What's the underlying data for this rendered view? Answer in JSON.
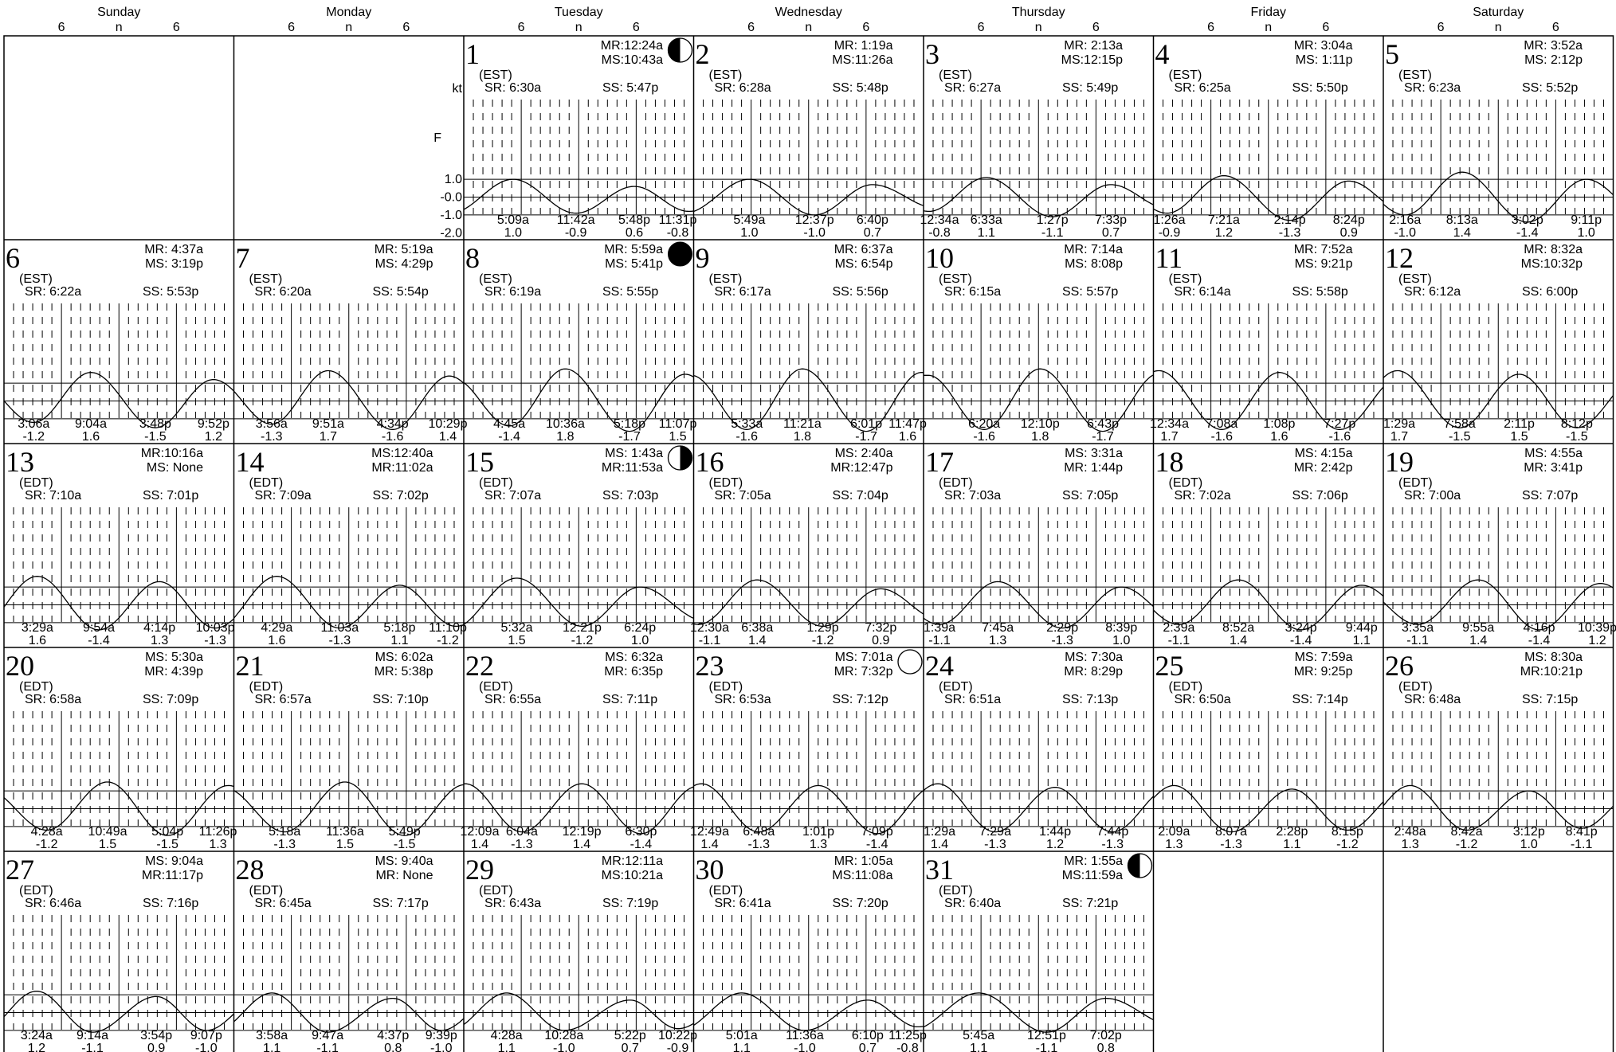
{
  "weekdays": [
    "Sunday",
    "Monday",
    "Tuesday",
    "Wednesday",
    "Thursday",
    "Friday",
    "Saturday"
  ],
  "hour_labels": [
    "6",
    "n",
    "6"
  ],
  "axis": {
    "unit": "kt",
    "sub_unit": "F",
    "ticks": [
      "1.0",
      "-0.0",
      "-1.0",
      "-2.0"
    ]
  },
  "chart_data": {
    "type": "line",
    "ylim": [
      -2.3,
      1.9
    ],
    "first_weekday_index": 2,
    "days": [
      {
        "d": 1,
        "tz": "(EST)",
        "sr": "SR: 6:30a",
        "ss": "SS: 5:47p",
        "m1": "MR:12:24a",
        "m2": "MS:10:43a",
        "phase": "last",
        "ev": [
          {
            "t": "5:09a",
            "v": "1.0"
          },
          {
            "t": "11:42a",
            "v": "-0.9"
          },
          {
            "t": "5:48p",
            "v": "0.6"
          },
          {
            "t": "11:31p",
            "v": "-0.8"
          }
        ]
      },
      {
        "d": 2,
        "tz": "(EST)",
        "sr": "SR: 6:28a",
        "ss": "SS: 5:48p",
        "m1": "MR:  1:19a",
        "m2": "MS:11:26a",
        "ev": [
          {
            "t": "5:49a",
            "v": "1.0"
          },
          {
            "t": "12:37p",
            "v": "-1.0"
          },
          {
            "t": "6:40p",
            "v": "0.7"
          }
        ]
      },
      {
        "d": 3,
        "tz": "(EST)",
        "sr": "SR: 6:27a",
        "ss": "SS: 5:49p",
        "m1": "MR:  2:13a",
        "m2": "MS:12:15p",
        "ev": [
          {
            "t": "12:34a",
            "v": "-0.8"
          },
          {
            "t": "6:33a",
            "v": "1.1"
          },
          {
            "t": "1:27p",
            "v": "-1.1"
          },
          {
            "t": "7:33p",
            "v": "0.7"
          }
        ]
      },
      {
        "d": 4,
        "tz": "(EST)",
        "sr": "SR: 6:25a",
        "ss": "SS: 5:50p",
        "m1": "MR: 3:04a",
        "m2": "MS: 1:11p",
        "ev": [
          {
            "t": "1:26a",
            "v": "-0.9"
          },
          {
            "t": "7:21a",
            "v": "1.2"
          },
          {
            "t": "2:14p",
            "v": "-1.3"
          },
          {
            "t": "8:24p",
            "v": "0.9"
          }
        ]
      },
      {
        "d": 5,
        "tz": "(EST)",
        "sr": "SR: 6:23a",
        "ss": "SS: 5:52p",
        "m1": "MR: 3:52a",
        "m2": "MS: 2:12p",
        "ev": [
          {
            "t": "2:16a",
            "v": "-1.0"
          },
          {
            "t": "8:13a",
            "v": "1.4"
          },
          {
            "t": "3:02p",
            "v": "-1.4"
          },
          {
            "t": "9:11p",
            "v": "1.0"
          }
        ]
      },
      {
        "d": 6,
        "tz": "(EST)",
        "sr": "SR: 6:22a",
        "ss": "SS: 5:53p",
        "m1": "MR: 4:37a",
        "m2": "MS: 3:19p",
        "ev": [
          {
            "t": "3:06a",
            "v": "-1.2"
          },
          {
            "t": "9:04a",
            "v": "1.6"
          },
          {
            "t": "3:48p",
            "v": "-1.5"
          },
          {
            "t": "9:52p",
            "v": "1.2"
          }
        ]
      },
      {
        "d": 7,
        "tz": "(EST)",
        "sr": "SR: 6:20a",
        "ss": "SS: 5:54p",
        "m1": "MR: 5:19a",
        "m2": "MS: 4:29p",
        "ev": [
          {
            "t": "3:56a",
            "v": "-1.3"
          },
          {
            "t": "9:51a",
            "v": "1.7"
          },
          {
            "t": "4:34p",
            "v": "-1.6"
          },
          {
            "t": "10:29p",
            "v": "1.4"
          }
        ]
      },
      {
        "d": 8,
        "tz": "(EST)",
        "sr": "SR: 6:19a",
        "ss": "SS: 5:55p",
        "m1": "MR: 5:59a",
        "m2": "MS: 5:41p",
        "phase": "new",
        "ev": [
          {
            "t": "4:45a",
            "v": "-1.4"
          },
          {
            "t": "10:36a",
            "v": "1.8"
          },
          {
            "t": "5:18p",
            "v": "-1.7"
          },
          {
            "t": "11:07p",
            "v": "1.5"
          }
        ]
      },
      {
        "d": 9,
        "tz": "(EST)",
        "sr": "SR: 6:17a",
        "ss": "SS: 5:56p",
        "m1": "MR: 6:37a",
        "m2": "MS: 6:54p",
        "ev": [
          {
            "t": "5:33a",
            "v": "-1.6"
          },
          {
            "t": "11:21a",
            "v": "1.8"
          },
          {
            "t": "6:01p",
            "v": "-1.7"
          },
          {
            "t": "11:47p",
            "v": "1.6"
          }
        ]
      },
      {
        "d": 10,
        "tz": "(EST)",
        "sr": "SR: 6:15a",
        "ss": "SS: 5:57p",
        "m1": "MR: 7:14a",
        "m2": "MS: 8:08p",
        "ev": [
          {
            "t": "6:20a",
            "v": "-1.6"
          },
          {
            "t": "12:10p",
            "v": "1.8"
          },
          {
            "t": "6:43p",
            "v": "-1.7"
          }
        ]
      },
      {
        "d": 11,
        "tz": "(EST)",
        "sr": "SR: 6:14a",
        "ss": "SS: 5:58p",
        "m1": "MR: 7:52a",
        "m2": "MS: 9:21p",
        "ev": [
          {
            "t": "12:34a",
            "v": "1.7"
          },
          {
            "t": "7:08a",
            "v": "-1.6"
          },
          {
            "t": "1:08p",
            "v": "1.6"
          },
          {
            "t": "7:27p",
            "v": "-1.6"
          }
        ]
      },
      {
        "d": 12,
        "tz": "(EST)",
        "sr": "SR: 6:12a",
        "ss": "SS: 6:00p",
        "m1": "MR:  8:32a",
        "m2": "MS:10:32p",
        "ev": [
          {
            "t": "1:29a",
            "v": "1.7"
          },
          {
            "t": "7:58a",
            "v": "-1.5"
          },
          {
            "t": "2:11p",
            "v": "1.5"
          },
          {
            "t": "8:12p",
            "v": "-1.5"
          }
        ]
      },
      {
        "d": 13,
        "tz": "(EDT)",
        "sr": "SR: 7:10a",
        "ss": "SS: 7:01p",
        "m1": "MR:10:16a",
        "m2": "MS:  None",
        "ev": [
          {
            "t": "3:29a",
            "v": "1.6"
          },
          {
            "t": "9:54a",
            "v": "-1.4"
          },
          {
            "t": "4:14p",
            "v": "1.3"
          },
          {
            "t": "10:03p",
            "v": "-1.3"
          }
        ]
      },
      {
        "d": 14,
        "tz": "(EDT)",
        "sr": "SR: 7:09a",
        "ss": "SS: 7:02p",
        "m1": "MS:12:40a",
        "m2": "MR:11:02a",
        "ev": [
          {
            "t": "4:29a",
            "v": "1.6"
          },
          {
            "t": "11:03a",
            "v": "-1.3"
          },
          {
            "t": "5:18p",
            "v": "1.1"
          },
          {
            "t": "11:10p",
            "v": "-1.2"
          }
        ]
      },
      {
        "d": 15,
        "tz": "(EDT)",
        "sr": "SR: 7:07a",
        "ss": "SS: 7:03p",
        "m1": "MS:  1:43a",
        "m2": "MR:11:53a",
        "phase": "first",
        "ev": [
          {
            "t": "5:32a",
            "v": "1.5"
          },
          {
            "t": "12:21p",
            "v": "-1.2"
          },
          {
            "t": "6:24p",
            "v": "1.0"
          }
        ]
      },
      {
        "d": 16,
        "tz": "(EDT)",
        "sr": "SR: 7:05a",
        "ss": "SS: 7:04p",
        "m1": "MS:  2:40a",
        "m2": "MR:12:47p",
        "ev": [
          {
            "t": "12:30a",
            "v": "-1.1"
          },
          {
            "t": "6:38a",
            "v": "1.4"
          },
          {
            "t": "1:29p",
            "v": "-1.2"
          },
          {
            "t": "7:32p",
            "v": "0.9"
          }
        ]
      },
      {
        "d": 17,
        "tz": "(EDT)",
        "sr": "SR: 7:03a",
        "ss": "SS: 7:05p",
        "m1": "MS: 3:31a",
        "m2": "MR: 1:44p",
        "ev": [
          {
            "t": "1:39a",
            "v": "-1.1"
          },
          {
            "t": "7:45a",
            "v": "1.3"
          },
          {
            "t": "2:29p",
            "v": "-1.3"
          },
          {
            "t": "8:39p",
            "v": "1.0"
          }
        ]
      },
      {
        "d": 18,
        "tz": "(EDT)",
        "sr": "SR: 7:02a",
        "ss": "SS: 7:06p",
        "m1": "MS: 4:15a",
        "m2": "MR: 2:42p",
        "ev": [
          {
            "t": "2:39a",
            "v": "-1.1"
          },
          {
            "t": "8:52a",
            "v": "1.4"
          },
          {
            "t": "3:24p",
            "v": "-1.4"
          },
          {
            "t": "9:44p",
            "v": "1.1"
          }
        ]
      },
      {
        "d": 19,
        "tz": "(EDT)",
        "sr": "SR: 7:00a",
        "ss": "SS: 7:07p",
        "m1": "MS: 4:55a",
        "m2": "MR: 3:41p",
        "ev": [
          {
            "t": "3:35a",
            "v": "-1.1"
          },
          {
            "t": "9:55a",
            "v": "1.4"
          },
          {
            "t": "4:16p",
            "v": "-1.4"
          },
          {
            "t": "10:39p",
            "v": "1.2"
          }
        ]
      },
      {
        "d": 20,
        "tz": "(EDT)",
        "sr": "SR: 6:58a",
        "ss": "SS: 7:09p",
        "m1": "MS: 5:30a",
        "m2": "MR: 4:39p",
        "ev": [
          {
            "t": "4:28a",
            "v": "-1.2"
          },
          {
            "t": "10:49a",
            "v": "1.5"
          },
          {
            "t": "5:04p",
            "v": "-1.5"
          },
          {
            "t": "11:26p",
            "v": "1.3"
          }
        ]
      },
      {
        "d": 21,
        "tz": "(EDT)",
        "sr": "SR: 6:57a",
        "ss": "SS: 7:10p",
        "m1": "MS: 6:02a",
        "m2": "MR: 5:38p",
        "ev": [
          {
            "t": "5:18a",
            "v": "-1.3"
          },
          {
            "t": "11:36a",
            "v": "1.5"
          },
          {
            "t": "5:49p",
            "v": "-1.5"
          }
        ]
      },
      {
        "d": 22,
        "tz": "(EDT)",
        "sr": "SR: 6:55a",
        "ss": "SS: 7:11p",
        "m1": "MS: 6:32a",
        "m2": "MR: 6:35p",
        "ev": [
          {
            "t": "12:09a",
            "v": "1.4"
          },
          {
            "t": "6:04a",
            "v": "-1.3"
          },
          {
            "t": "12:19p",
            "v": "1.4"
          },
          {
            "t": "6:30p",
            "v": "-1.4"
          }
        ]
      },
      {
        "d": 23,
        "tz": "(EDT)",
        "sr": "SR: 6:53a",
        "ss": "SS: 7:12p",
        "m1": "MS: 7:01a",
        "m2": "MR: 7:32p",
        "phase": "full",
        "ev": [
          {
            "t": "12:49a",
            "v": "1.4"
          },
          {
            "t": "6:48a",
            "v": "-1.3"
          },
          {
            "t": "1:01p",
            "v": "1.3"
          },
          {
            "t": "7:09p",
            "v": "-1.4"
          }
        ]
      },
      {
        "d": 24,
        "tz": "(EDT)",
        "sr": "SR: 6:51a",
        "ss": "SS: 7:13p",
        "m1": "MS: 7:30a",
        "m2": "MR: 8:29p",
        "ev": [
          {
            "t": "1:29a",
            "v": "1.4"
          },
          {
            "t": "7:29a",
            "v": "-1.3"
          },
          {
            "t": "1:44p",
            "v": "1.2"
          },
          {
            "t": "7:44p",
            "v": "-1.3"
          }
        ]
      },
      {
        "d": 25,
        "tz": "(EDT)",
        "sr": "SR: 6:50a",
        "ss": "SS: 7:14p",
        "m1": "MS: 7:59a",
        "m2": "MR: 9:25p",
        "ev": [
          {
            "t": "2:09a",
            "v": "1.3"
          },
          {
            "t": "8:07a",
            "v": "-1.3"
          },
          {
            "t": "2:28p",
            "v": "1.1"
          },
          {
            "t": "8:15p",
            "v": "-1.2"
          }
        ]
      },
      {
        "d": 26,
        "tz": "(EDT)",
        "sr": "SR: 6:48a",
        "ss": "SS: 7:15p",
        "m1": "MS:  8:30a",
        "m2": "MR:10:21p",
        "ev": [
          {
            "t": "2:48a",
            "v": "1.3"
          },
          {
            "t": "8:42a",
            "v": "-1.2"
          },
          {
            "t": "3:12p",
            "v": "1.0"
          },
          {
            "t": "8:41p",
            "v": "-1.1"
          }
        ]
      },
      {
        "d": 27,
        "tz": "(EDT)",
        "sr": "SR: 6:46a",
        "ss": "SS: 7:16p",
        "m1": "MS:  9:04a",
        "m2": "MR:11:17p",
        "ev": [
          {
            "t": "3:24a",
            "v": "1.2"
          },
          {
            "t": "9:14a",
            "v": "-1.1"
          },
          {
            "t": "3:54p",
            "v": "0.9"
          },
          {
            "t": "9:07p",
            "v": "-1.0"
          }
        ]
      },
      {
        "d": 28,
        "tz": "(EDT)",
        "sr": "SR: 6:45a",
        "ss": "SS: 7:17p",
        "m1": "MS: 9:40a",
        "m2": "MR: None",
        "ev": [
          {
            "t": "3:58a",
            "v": "1.1"
          },
          {
            "t": "9:47a",
            "v": "-1.1"
          },
          {
            "t": "4:37p",
            "v": "0.8"
          },
          {
            "t": "9:39p",
            "v": "-1.0"
          }
        ]
      },
      {
        "d": 29,
        "tz": "(EDT)",
        "sr": "SR: 6:43a",
        "ss": "SS: 7:19p",
        "m1": "MR:12:11a",
        "m2": "MS:10:21a",
        "ev": [
          {
            "t": "4:28a",
            "v": "1.1"
          },
          {
            "t": "10:28a",
            "v": "-1.0"
          },
          {
            "t": "5:22p",
            "v": "0.7"
          },
          {
            "t": "10:22p",
            "v": "-0.9"
          }
        ]
      },
      {
        "d": 30,
        "tz": "(EDT)",
        "sr": "SR: 6:41a",
        "ss": "SS: 7:20p",
        "m1": "MR:  1:05a",
        "m2": "MS:11:08a",
        "ev": [
          {
            "t": "5:01a",
            "v": "1.1"
          },
          {
            "t": "11:36a",
            "v": "-1.0"
          },
          {
            "t": "6:10p",
            "v": "0.7"
          },
          {
            "t": "11:25p",
            "v": "-0.8"
          }
        ]
      },
      {
        "d": 31,
        "tz": "(EDT)",
        "sr": "SR: 6:40a",
        "ss": "SS: 7:21p",
        "m1": "MR:  1:55a",
        "m2": "MS:11:59a",
        "phase": "last",
        "ev": [
          {
            "t": "5:45a",
            "v": "1.1"
          },
          {
            "t": "12:51p",
            "v": "-1.1"
          },
          {
            "t": "7:02p",
            "v": "0.8"
          }
        ]
      }
    ]
  }
}
